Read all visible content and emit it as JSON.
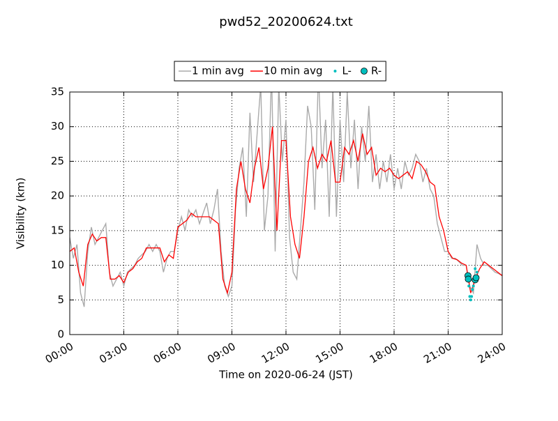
{
  "chart_data": {
    "type": "line",
    "title": "pwd52_20200624.txt",
    "xlabel": "Time on 2020-06-24 (JST)",
    "ylabel": "Visibility (km)",
    "xlim": [
      0,
      24
    ],
    "ylim": [
      0,
      35
    ],
    "xticks": [
      {
        "value": 0,
        "label": "00:00"
      },
      {
        "value": 3,
        "label": "03:00"
      },
      {
        "value": 6,
        "label": "06:00"
      },
      {
        "value": 9,
        "label": "09:00"
      },
      {
        "value": 12,
        "label": "12:00"
      },
      {
        "value": 15,
        "label": "15:00"
      },
      {
        "value": 18,
        "label": "18:00"
      },
      {
        "value": 21,
        "label": "21:00"
      },
      {
        "value": 24,
        "label": "24:00"
      }
    ],
    "yticks": [
      0,
      5,
      10,
      15,
      20,
      25,
      30,
      35
    ],
    "grid": true,
    "legend": "top",
    "series": [
      {
        "name": "1 min avg",
        "color": "#aaaaaa",
        "marker": "line",
        "x": [
          0,
          0.2,
          0.4,
          0.6,
          0.8,
          1,
          1.2,
          1.4,
          1.6,
          1.8,
          2,
          2.2,
          2.4,
          2.6,
          2.8,
          3,
          3.2,
          3.4,
          3.6,
          3.8,
          4,
          4.2,
          4.4,
          4.6,
          4.8,
          5,
          5.2,
          5.4,
          5.6,
          5.8,
          6,
          6.2,
          6.4,
          6.6,
          6.8,
          7,
          7.2,
          7.4,
          7.6,
          7.8,
          8,
          8.2,
          8.4,
          8.6,
          8.8,
          9,
          9.2,
          9.4,
          9.6,
          9.8,
          10,
          10.2,
          10.4,
          10.6,
          10.8,
          11,
          11.2,
          11.4,
          11.6,
          11.8,
          12,
          12.2,
          12.4,
          12.6,
          12.8,
          13,
          13.2,
          13.4,
          13.6,
          13.8,
          14,
          14.2,
          14.4,
          14.6,
          14.8,
          15,
          15.2,
          15.4,
          15.6,
          15.8,
          16,
          16.2,
          16.4,
          16.6,
          16.8,
          17,
          17.2,
          17.4,
          17.6,
          17.8,
          18,
          18.2,
          18.4,
          18.6,
          18.8,
          19,
          19.2,
          19.4,
          19.6,
          19.8,
          20,
          20.2,
          20.4,
          20.6,
          20.8,
          21,
          21.2,
          21.4,
          21.6,
          21.8,
          22,
          22.2,
          22.4,
          22.6,
          22.8,
          23,
          23.2,
          23.4,
          23.6,
          23.8,
          24
        ],
        "values": [
          14,
          11,
          13,
          6,
          4,
          12,
          15.5,
          13,
          14,
          15,
          16,
          9,
          7,
          8,
          9,
          7,
          9,
          9.5,
          10,
          11,
          11.5,
          12,
          13,
          12,
          13,
          12,
          9,
          11,
          12,
          12,
          15,
          17,
          15,
          18,
          17,
          18,
          16,
          17.5,
          19,
          16,
          18,
          21,
          12,
          7,
          5.5,
          7,
          18,
          24,
          27,
          17,
          32,
          22,
          29,
          36,
          15,
          20,
          38,
          12,
          36,
          25,
          31,
          14,
          9,
          8,
          15,
          22,
          33,
          30,
          18,
          38,
          24,
          31,
          17,
          36,
          17,
          31,
          22,
          35,
          24,
          31,
          21,
          30,
          25,
          33,
          22,
          26,
          21,
          25,
          22,
          26,
          21,
          24,
          21,
          25,
          23,
          24,
          26,
          25,
          22,
          24,
          21,
          20,
          16,
          14,
          12,
          12,
          11,
          11,
          10.5,
          10,
          10,
          7,
          6,
          13,
          11,
          10,
          10,
          9.5,
          9,
          8.8,
          8.5
        ]
      },
      {
        "name": "10 min avg",
        "color": "#ff0000",
        "marker": "line",
        "x": [
          0,
          0.25,
          0.5,
          0.75,
          1,
          1.25,
          1.5,
          1.75,
          2,
          2.25,
          2.5,
          2.75,
          3,
          3.25,
          3.5,
          3.75,
          4,
          4.25,
          4.5,
          4.75,
          5,
          5.25,
          5.5,
          5.75,
          6,
          6.25,
          6.5,
          6.75,
          7,
          7.25,
          7.5,
          7.75,
          8,
          8.25,
          8.5,
          8.75,
          9,
          9.25,
          9.5,
          9.75,
          10,
          10.25,
          10.5,
          10.75,
          11,
          11.25,
          11.5,
          11.75,
          12,
          12.25,
          12.5,
          12.75,
          13,
          13.25,
          13.5,
          13.75,
          14,
          14.25,
          14.5,
          14.75,
          15,
          15.25,
          15.5,
          15.75,
          16,
          16.25,
          16.5,
          16.75,
          17,
          17.25,
          17.5,
          17.75,
          18,
          18.25,
          18.5,
          18.75,
          19,
          19.25,
          19.5,
          19.75,
          20,
          20.25,
          20.5,
          20.75,
          21,
          21.25,
          21.5,
          21.75,
          22,
          22.25,
          22.5,
          22.75,
          23,
          23.25,
          23.5,
          23.75,
          24
        ],
        "values": [
          12,
          12.5,
          9,
          7,
          13,
          14.5,
          13.5,
          14,
          14,
          8,
          8,
          8.5,
          7.5,
          9,
          9.5,
          10.5,
          11,
          12.5,
          12.5,
          12.5,
          12.5,
          10.5,
          11.5,
          11,
          15.5,
          16,
          16.5,
          17.5,
          17,
          17,
          17,
          17,
          16.5,
          16,
          8,
          6,
          9,
          21,
          25,
          21,
          19,
          24,
          27,
          21,
          24,
          30,
          15,
          28,
          28,
          17,
          13,
          11,
          17,
          25,
          27,
          24,
          26,
          25,
          28,
          22,
          22,
          27,
          26,
          28,
          25,
          29,
          26,
          27,
          23,
          24,
          23.5,
          24,
          23,
          22.5,
          23,
          23.5,
          22.5,
          25,
          24.5,
          23.5,
          22,
          21.5,
          17,
          15,
          12,
          11,
          10.8,
          10.3,
          10,
          6,
          8,
          9.5,
          10.5,
          10,
          9.5,
          9,
          8.5
        ]
      },
      {
        "name": "L-",
        "color": "#00bfbf",
        "marker": "dot",
        "x": [
          22.1,
          22.15,
          22.2,
          22.25,
          22.3,
          22.35,
          22.4,
          22.45,
          22.5,
          22.55,
          22.6
        ],
        "values": [
          8,
          7,
          5.5,
          5,
          5.5,
          6.5,
          7,
          8,
          9.5,
          8,
          9
        ]
      },
      {
        "name": "R-",
        "color": "#00bfbf",
        "marker": "circle",
        "x": [
          22.1,
          22.12,
          22.5,
          22.55
        ],
        "values": [
          8.5,
          8,
          7.9,
          8.2
        ]
      }
    ]
  }
}
